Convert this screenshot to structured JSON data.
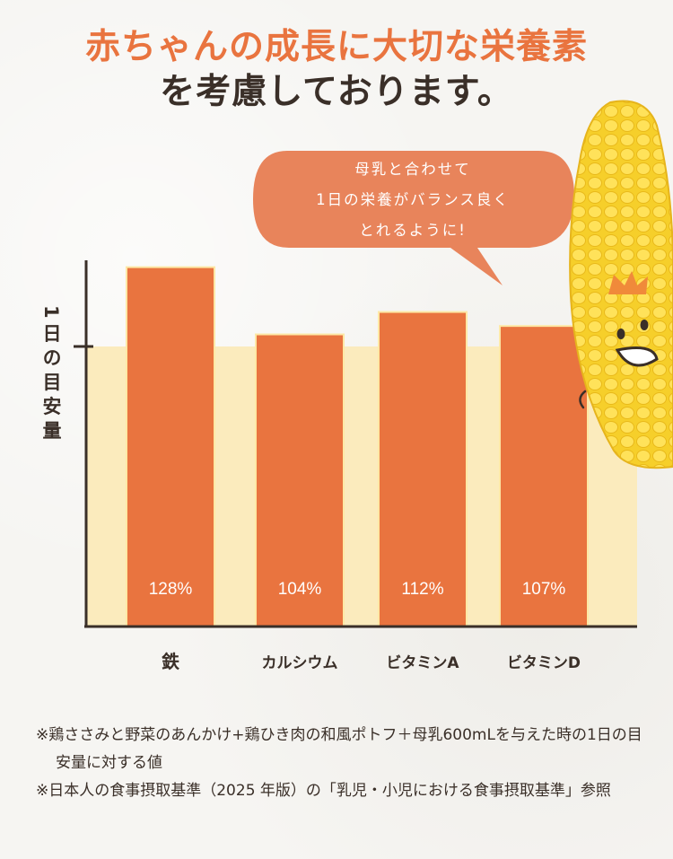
{
  "title": {
    "line1": "赤ちゃんの成長に大切な栄養素",
    "line2": "を考慮しております。"
  },
  "speech_bubble": {
    "lines": [
      "母乳と合わせて",
      "1日の栄養がバランス良く",
      "とれるように!"
    ],
    "color": "#e8845b"
  },
  "chart_data": {
    "type": "bar",
    "categories": [
      "鉄",
      "カルシウム",
      "ビタミンA",
      "ビタミンD"
    ],
    "values": [
      128,
      104,
      112,
      107
    ],
    "value_labels": [
      "128%",
      "104%",
      "112%",
      "107%"
    ],
    "ylabel": "1日の目安量",
    "reference_line": 100,
    "unit": "%",
    "ylim": [
      0,
      128
    ],
    "bar_color": "#e9743f",
    "reference_fill": "#fbebbd",
    "grid": false
  },
  "footnotes": [
    "※鶏ささみと野菜のあんかけ+鶏ひき肉の和風ポトフ＋母乳600mLを与えた時の1日の目安量に対する値",
    "※日本人の食事摂取基準（2025 年版）の「乳児・小児における食事摂取基準」参照"
  ],
  "icons": {
    "mascot": "corn-mascot-icon",
    "crown": "crown-icon"
  }
}
